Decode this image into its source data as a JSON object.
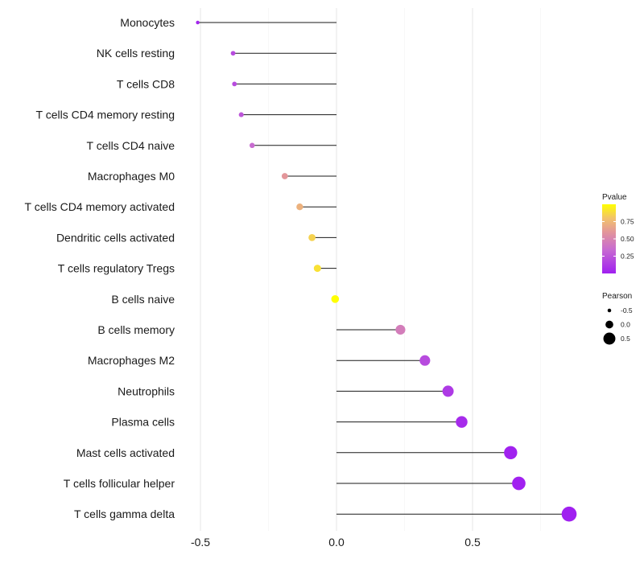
{
  "chart_data": {
    "type": "lollipop",
    "title": "",
    "xlabel": "",
    "ylabel": "",
    "xlim": [
      -0.55,
      0.88
    ],
    "x_ticks": [
      -0.5,
      0.0,
      0.5
    ],
    "x_tick_labels": [
      "-0.5",
      "0.0",
      "0.5"
    ],
    "grid": true,
    "categories": [
      "Monocytes",
      "NK cells resting",
      "T cells CD8",
      "T cells CD4 memory resting",
      "T cells CD4 naive",
      "Macrophages M0",
      "T cells CD4 memory activated",
      "Dendritic cells activated",
      "T cells regulatory  Tregs",
      "B cells naive",
      "B cells memory",
      "Macrophages M2",
      "Neutrophils",
      "Plasma cells",
      "Mast cells activated",
      "T cells follicular helper",
      "T cells gamma delta"
    ],
    "pearson": [
      -0.51,
      -0.38,
      -0.375,
      -0.35,
      -0.31,
      -0.19,
      -0.135,
      -0.09,
      -0.07,
      -0.005,
      0.235,
      0.325,
      0.41,
      0.46,
      0.64,
      0.67,
      0.855
    ],
    "pvalue": [
      0.03,
      0.2,
      0.2,
      0.25,
      0.35,
      0.6,
      0.72,
      0.85,
      0.9,
      1.0,
      0.45,
      0.2,
      0.12,
      0.05,
      0.01,
      0.005,
      0.001
    ],
    "color_legend": {
      "title": "Pvalue",
      "ticks": [
        0.75,
        0.5,
        0.25
      ],
      "tick_labels": [
        "0.75",
        "0.50",
        "0.25"
      ],
      "range": [
        0.0,
        1.0
      ],
      "low_color": "#a020f0",
      "mid_color": "#e0859a",
      "high_color": "#ffff00"
    },
    "size_legend": {
      "title": "Pearson",
      "values": [
        -0.5,
        0.0,
        0.5
      ],
      "labels": [
        "-0.5",
        "0.0",
        "0.5"
      ]
    }
  }
}
